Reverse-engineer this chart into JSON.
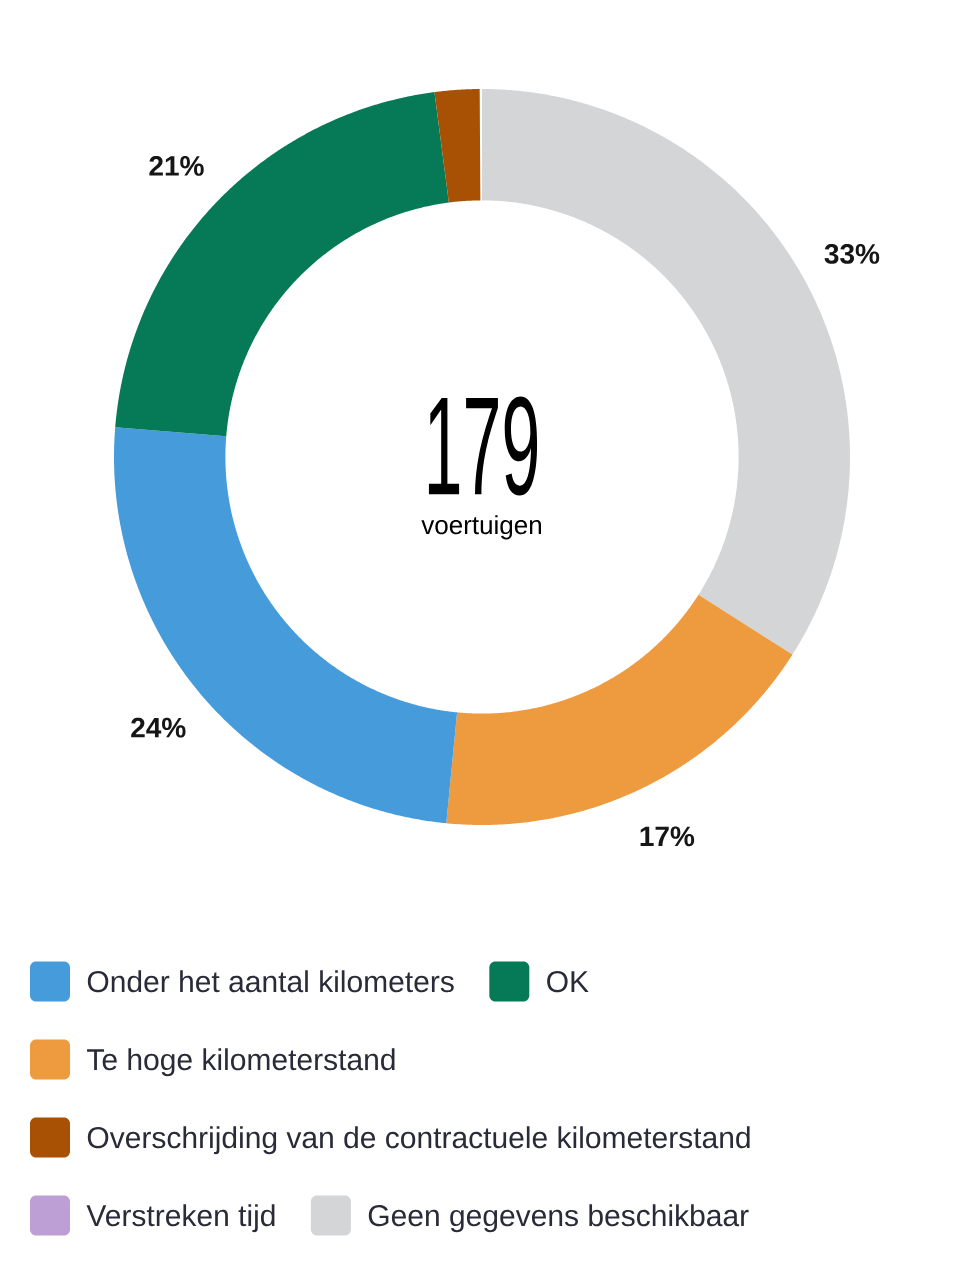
{
  "chart_data": {
    "type": "donut",
    "categories": [
      "Geen gegevens beschikbaar",
      "Te hoge kilometerstand",
      "Onder het aantal kilometers",
      "OK",
      "Overschrijding van de contractuele kilometerstand",
      "Verstreken tijd"
    ],
    "values": [
      33,
      17,
      24,
      21,
      2,
      0
    ],
    "colors": [
      "#d4d5d7",
      "#ee9a3f",
      "#469bda",
      "#067a57",
      "#a85105",
      "#bd9ed5"
    ],
    "value_labels": [
      "33%",
      "17%",
      "24%",
      "21%",
      null,
      null
    ],
    "annotations": [
      "179",
      "voertuigen"
    ],
    "legend": "bottom"
  }
}
